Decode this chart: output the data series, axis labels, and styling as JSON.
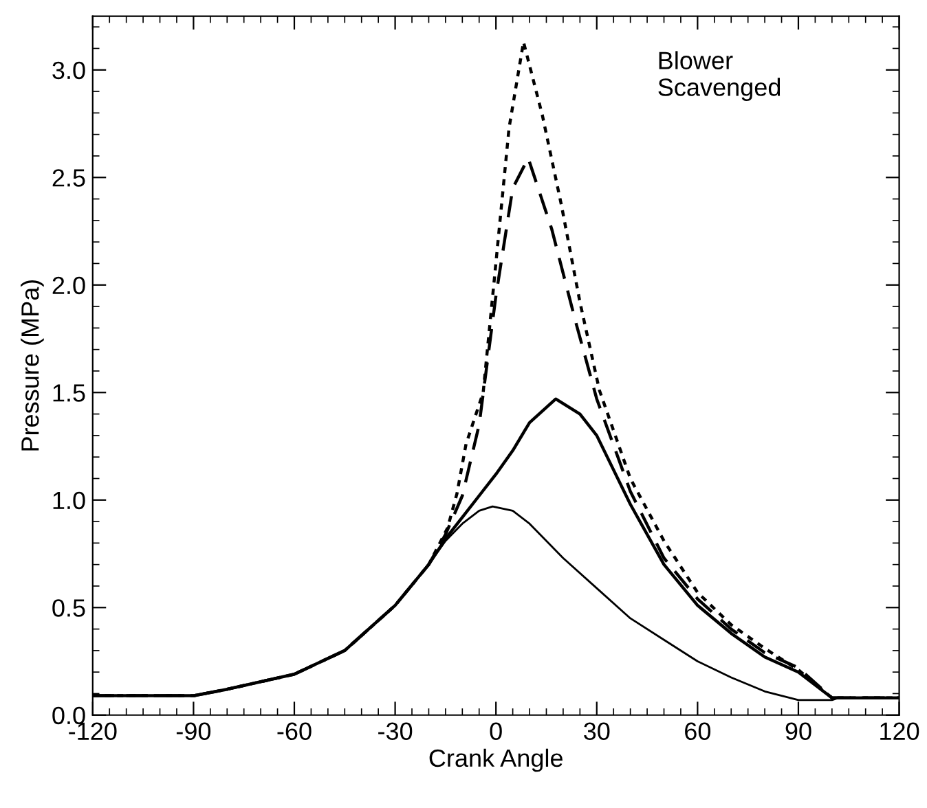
{
  "chart_data": {
    "type": "line",
    "xlabel": "Crank Angle",
    "ylabel": "Pressure (MPa)",
    "annotations": [
      "Blower\nScavenged"
    ],
    "xlim": [
      -120,
      120
    ],
    "ylim": [
      0,
      3.25
    ],
    "xticks": [
      -120,
      -90,
      -60,
      -30,
      0,
      30,
      60,
      90,
      120
    ],
    "yticks": [
      {
        "value": 0,
        "label": "0.0"
      },
      0.5,
      {
        "value": 1,
        "label": "1.0"
      },
      1.5,
      {
        "value": 2,
        "label": "2.0"
      },
      2.5,
      {
        "value": 3,
        "label": "3.0"
      }
    ],
    "grid": false,
    "legend": false,
    "marker": "none",
    "series": [
      {
        "color": "#000000",
        "line_style": "solid",
        "x": [
          -120,
          -90,
          -80,
          -60,
          -45,
          -30,
          -20,
          -15,
          -10,
          -5,
          -1,
          5,
          10,
          20,
          30,
          40,
          50,
          60,
          70,
          80,
          90,
          100,
          102,
          120
        ],
        "values": [
          0.09,
          0.09,
          0.12,
          0.19,
          0.3,
          0.51,
          0.7,
          0.81,
          0.89,
          0.95,
          0.97,
          0.95,
          0.89,
          0.73,
          0.59,
          0.45,
          0.35,
          0.25,
          0.175,
          0.11,
          0.07,
          0.07,
          0.08,
          0.08
        ]
      },
      {
        "color": "#000000",
        "line_style": "solid",
        "x": [
          -120,
          -90,
          -80,
          -60,
          -45,
          -30,
          -20,
          -15,
          -10,
          -5,
          0,
          5,
          10,
          17.8,
          25,
          30,
          40,
          50,
          60,
          70,
          80,
          90,
          100,
          120
        ],
        "values": [
          0.09,
          0.09,
          0.12,
          0.19,
          0.3,
          0.51,
          0.7,
          0.82,
          0.92,
          1.02,
          1.12,
          1.23,
          1.36,
          1.47,
          1.4,
          1.3,
          0.98,
          0.7,
          0.51,
          0.38,
          0.27,
          0.2,
          0.08,
          0.08
        ]
      },
      {
        "color": "#000000",
        "line_style": "dashed",
        "x": [
          -120,
          -90,
          -80,
          -60,
          -45,
          -30,
          -20,
          -15,
          -10,
          -5,
          0,
          5,
          9.6,
          16.6,
          23.7,
          30,
          40,
          50,
          60,
          70,
          80,
          90,
          100,
          120
        ],
        "values": [
          0.09,
          0.09,
          0.12,
          0.19,
          0.3,
          0.51,
          0.7,
          0.84,
          1.02,
          1.35,
          1.95,
          2.45,
          2.59,
          2.26,
          1.83,
          1.47,
          1.04,
          0.73,
          0.54,
          0.4,
          0.29,
          0.22,
          0.08,
          0.08
        ]
      },
      {
        "color": "#000000",
        "line_style": "dotted",
        "x": [
          -120,
          -90,
          -80,
          -60,
          -45,
          -30,
          -20,
          -14.4,
          -11.6,
          -8.9,
          -3.8,
          -0.4,
          3.9,
          8.2,
          13.8,
          19.5,
          25,
          30.8,
          40,
          50,
          60,
          70,
          80,
          90,
          100,
          120
        ],
        "values": [
          0.09,
          0.09,
          0.12,
          0.19,
          0.3,
          0.51,
          0.7,
          0.87,
          1.03,
          1.26,
          1.5,
          2.04,
          2.73,
          3.13,
          2.79,
          2.37,
          1.92,
          1.51,
          1.1,
          0.81,
          0.57,
          0.42,
          0.31,
          0.21,
          0.08,
          0.08
        ]
      }
    ]
  }
}
